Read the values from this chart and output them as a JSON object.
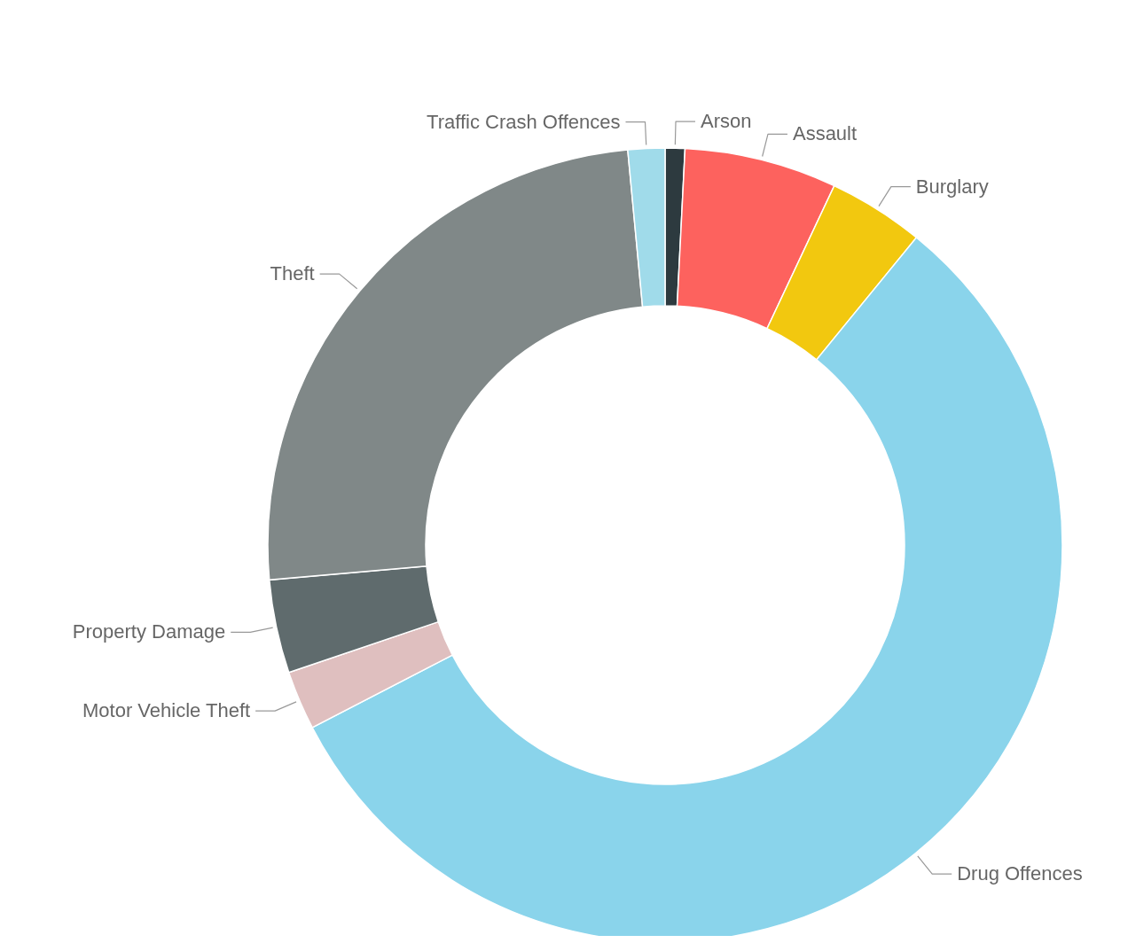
{
  "chart_data": {
    "type": "donut",
    "categories": [
      "Arson",
      "Assault",
      "Burglary",
      "Drug Offences",
      "Motor Vehicle Theft",
      "Property Damage",
      "Theft",
      "Traffic Crash Offences"
    ],
    "values": [
      0.8,
      6.2,
      3.9,
      56.5,
      2.4,
      3.8,
      24.9,
      1.5
    ],
    "colors": [
      "#2d3a3f",
      "#fd625e",
      "#f2c80f",
      "#8ad4eb",
      "#dfbfbf",
      "#5f6b6d",
      "#808888",
      "#a0dbea"
    ]
  }
}
